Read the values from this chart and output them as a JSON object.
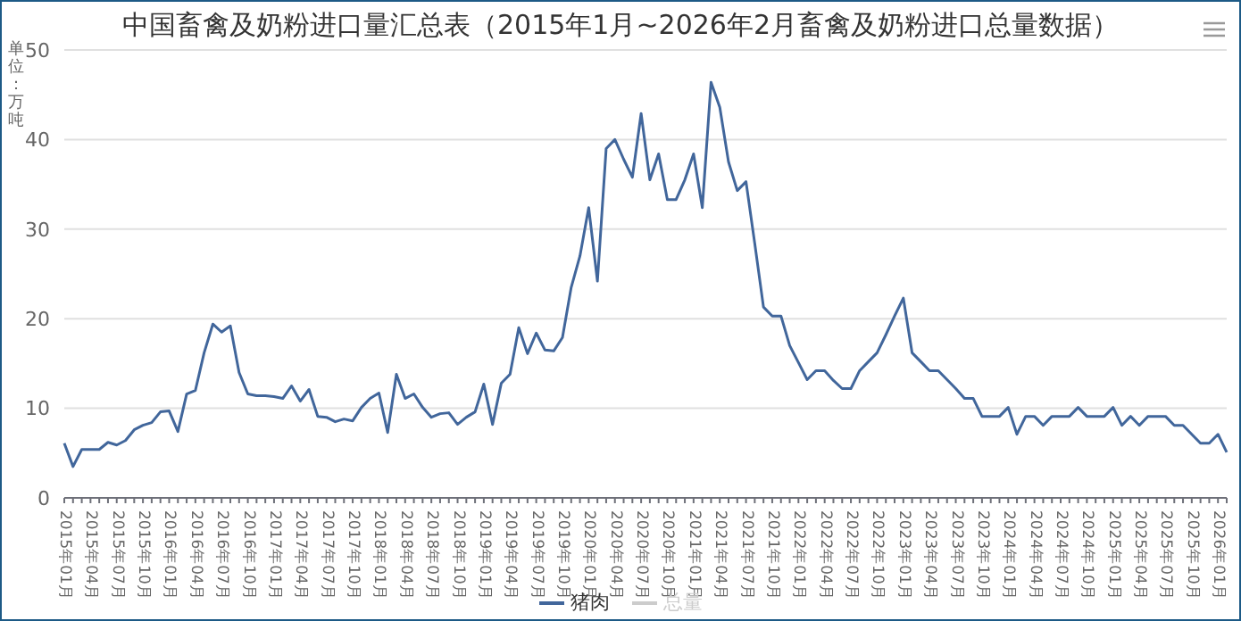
{
  "chart_data": {
    "type": "line",
    "title": "中国畜禽及奶粉进口量汇总表（2015年1月~2026年2月畜禽及奶粉进口总量数据）",
    "ylabel": "单位：万吨",
    "categories": [
      "2015年01月",
      null,
      null,
      "2015年04月",
      null,
      null,
      "2015年07月",
      null,
      null,
      "2015年10月",
      null,
      null,
      "2016年01月",
      null,
      null,
      "2016年04月",
      null,
      null,
      "2016年07月",
      null,
      null,
      "2016年10月",
      null,
      null,
      "2017年01月",
      null,
      null,
      "2017年04月",
      null,
      null,
      "2017年07月",
      null,
      null,
      "2017年10月",
      null,
      null,
      "2018年01月",
      null,
      null,
      "2018年04月",
      null,
      null,
      "2018年07月",
      null,
      null,
      "2018年10月",
      null,
      null,
      "2019年01月",
      null,
      null,
      "2019年04月",
      null,
      null,
      "2019年07月",
      null,
      null,
      "2019年10月",
      null,
      null,
      "2020年01月",
      null,
      null,
      "2020年04月",
      null,
      null,
      "2020年07月",
      null,
      null,
      "2020年10月",
      null,
      null,
      "2021年01月",
      null,
      null,
      "2021年04月",
      null,
      null,
      "2021年07月",
      null,
      null,
      "2021年10月",
      null,
      null,
      "2022年01月",
      null,
      null,
      "2022年04月",
      null,
      null,
      "2022年07月",
      null,
      null,
      "2022年10月",
      null,
      null,
      "2023年01月",
      null,
      null,
      "2023年04月",
      null,
      null,
      "2023年07月",
      null,
      null,
      "2023年10月",
      null,
      null,
      "2024年01月",
      null,
      null,
      "2024年04月",
      null,
      null,
      "2024年07月",
      null,
      null,
      "2024年10月",
      null,
      null,
      "2025年01月",
      null,
      null,
      "2025年04月",
      null,
      null,
      "2025年07月",
      null,
      null,
      "2025年10月",
      null,
      null,
      "2026年01月",
      null
    ],
    "series": [
      {
        "name": "猪肉",
        "color": "#41669b",
        "values": [
          6.1,
          3.5,
          5.4,
          5.4,
          5.4,
          6.2,
          5.9,
          6.4,
          7.6,
          8.1,
          8.4,
          9.6,
          9.7,
          7.4,
          11.6,
          12.0,
          16.2,
          19.4,
          18.5,
          19.2,
          14.0,
          11.6,
          11.4,
          11.4,
          11.3,
          11.1,
          12.5,
          10.8,
          12.1,
          9.1,
          9.0,
          8.5,
          8.8,
          8.6,
          10.1,
          11.1,
          11.7,
          7.3,
          13.8,
          11.1,
          11.6,
          10.1,
          9.0,
          9.4,
          9.5,
          8.2,
          9.0,
          9.6,
          12.7,
          8.2,
          12.8,
          13.8,
          19.0,
          16.1,
          18.4,
          16.5,
          16.4,
          17.9,
          23.5,
          27.0,
          32.4,
          24.2,
          39.0,
          40.0,
          37.8,
          35.8,
          42.9,
          35.5,
          38.4,
          33.3,
          33.3,
          35.5,
          38.4,
          32.4,
          46.4,
          43.6,
          37.5,
          34.3,
          35.3,
          28.4,
          21.3,
          20.3,
          20.3,
          17.0,
          15.1,
          13.2,
          14.2,
          14.2,
          13.1,
          12.2,
          12.2,
          14.2,
          15.2,
          16.2,
          18.2,
          20.3,
          22.3,
          16.2,
          15.2,
          14.2,
          14.2,
          13.2,
          12.2,
          11.1,
          11.1,
          9.1,
          9.1,
          9.1,
          10.1,
          7.1,
          9.1,
          9.1,
          8.1,
          9.1,
          9.1,
          9.1,
          10.1,
          9.1,
          9.1,
          9.1,
          10.1,
          8.1,
          9.1,
          8.1,
          9.1,
          9.1,
          9.1,
          8.1,
          8.1,
          7.1,
          6.1,
          6.1,
          7.1,
          5.1
        ]
      },
      {
        "name": "总量",
        "color": "#cccccc",
        "values": [
          null,
          null,
          null,
          null,
          null,
          null,
          null,
          null,
          null,
          null,
          null,
          null,
          null,
          null,
          null,
          null,
          null,
          null,
          null,
          null,
          null,
          null,
          null,
          null,
          null,
          null,
          null,
          null,
          null,
          null,
          null,
          null,
          null,
          null,
          null,
          null,
          null,
          null,
          null,
          null,
          null,
          null,
          null,
          null,
          null,
          null,
          null,
          null,
          null,
          null,
          null,
          null,
          null,
          null,
          null,
          null,
          null,
          null,
          null,
          null,
          null,
          null,
          null,
          null,
          null,
          null,
          null,
          null,
          null,
          null,
          null,
          null,
          null,
          null,
          null,
          null,
          null,
          null,
          null,
          null,
          null,
          null,
          null,
          null,
          null,
          null,
          null,
          null,
          null,
          null,
          null,
          null,
          null,
          null,
          null,
          null,
          null,
          null,
          null,
          null,
          null,
          null,
          null,
          null,
          null,
          null,
          null,
          null,
          null,
          null,
          null,
          null,
          null,
          null,
          null,
          null,
          null,
          null,
          null,
          null,
          null,
          null,
          null,
          null,
          null,
          null,
          null,
          null,
          null,
          null,
          null,
          null,
          null,
          null
        ]
      }
    ],
    "ylim": [
      0,
      50
    ],
    "yticks": [
      0,
      10,
      20,
      30,
      40,
      50
    ],
    "grid": "y",
    "legend": "bottom",
    "marker": "none",
    "line_style": "solid"
  }
}
